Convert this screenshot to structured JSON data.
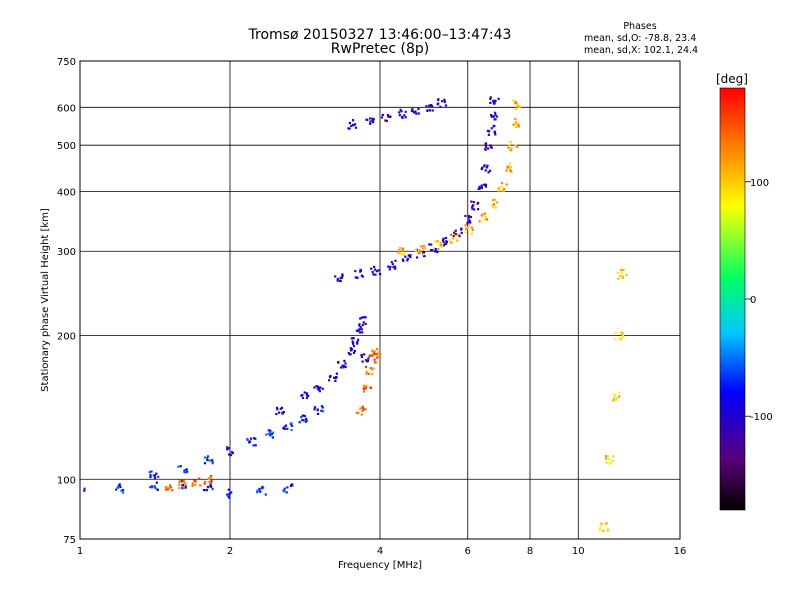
{
  "title_line1": "Tromsø 20150327 13:46:00–13:47:43",
  "title_line2": "RwPretec (8p)",
  "phases": {
    "heading": "Phases",
    "line_o": "mean, sd,O: -78.8, 23.4",
    "line_x": "mean, sd,X: 102.1, 24.4"
  },
  "colorbar": {
    "label": "[deg]",
    "ticks": [
      {
        "value": 100,
        "label": "100"
      },
      {
        "value": 0,
        "label": "0"
      },
      {
        "value": -100,
        "label": "-100"
      }
    ],
    "range": [
      -180,
      180
    ]
  },
  "chart_data": {
    "type": "scatter",
    "xlabel": "Frequency [MHz]",
    "ylabel": "Stationary phase Virtual Height [km]",
    "xscale": "log",
    "yscale": "log",
    "xlim": [
      1,
      16
    ],
    "ylim": [
      75,
      750
    ],
    "xticks": [
      {
        "v": 1,
        "label": "1"
      },
      {
        "v": 2,
        "label": "2"
      },
      {
        "v": 4,
        "label": "4"
      },
      {
        "v": 6,
        "label": "6"
      },
      {
        "v": 8,
        "label": "8"
      },
      {
        "v": 10,
        "label": "10"
      },
      {
        "v": 16,
        "label": "16"
      }
    ],
    "yticks": [
      {
        "v": 75,
        "label": "75"
      },
      {
        "v": 100,
        "label": "100"
      },
      {
        "v": 200,
        "label": "200"
      },
      {
        "v": 300,
        "label": "300"
      },
      {
        "v": 400,
        "label": "400"
      },
      {
        "v": 500,
        "label": "500"
      },
      {
        "v": 600,
        "label": "600"
      },
      {
        "v": 750,
        "label": "750"
      }
    ],
    "grid": true,
    "color_by": "phase [deg]",
    "traces": [
      {
        "name": "",
        "phase": -100,
        "x": [
          2.5,
          2.8,
          3.0,
          3.2,
          3.35,
          3.5,
          3.55,
          3.6,
          3.65,
          3.7
        ],
        "y": [
          140,
          150,
          155,
          165,
          175,
          185,
          195,
          205,
          215,
          180
        ]
      },
      {
        "name": "",
        "phase": -75,
        "x": [
          1.4,
          1.6,
          1.8,
          2.0,
          2.2,
          2.4,
          2.6,
          2.8,
          3.0
        ],
        "y": [
          103,
          105,
          110,
          115,
          120,
          125,
          130,
          135,
          140
        ]
      },
      {
        "name": "",
        "phase": -100,
        "x": [
          3.3,
          3.6,
          3.9,
          4.2,
          4.5,
          4.8,
          5.1,
          5.4,
          5.7,
          6.0,
          6.2,
          6.4,
          6.5,
          6.6,
          6.65,
          6.7,
          6.75
        ],
        "y": [
          265,
          270,
          275,
          282,
          290,
          298,
          305,
          315,
          330,
          350,
          375,
          410,
          450,
          500,
          540,
          580,
          620
        ]
      },
      {
        "name": "",
        "phase": -100,
        "x": [
          3.5,
          3.8,
          4.1,
          4.4,
          4.7,
          5.0,
          5.3
        ],
        "y": [
          555,
          565,
          575,
          585,
          595,
          605,
          615
        ]
      },
      {
        "name": "",
        "phase": 110,
        "x": [
          4.4,
          4.8,
          5.2,
          5.6,
          6.0,
          6.4,
          6.8,
          7.0,
          7.2,
          7.35,
          7.45,
          7.5
        ],
        "y": [
          300,
          303,
          310,
          320,
          335,
          355,
          380,
          410,
          450,
          500,
          560,
          610
        ]
      },
      {
        "name": "",
        "phase": 140,
        "x": [
          3.65,
          3.75,
          3.8,
          3.85,
          3.9
        ],
        "y": [
          140,
          155,
          170,
          180,
          185
        ]
      },
      {
        "name": "",
        "phase": 95,
        "x": [
          11.2,
          11.5,
          11.8,
          12.0,
          12.2
        ],
        "y": [
          80,
          110,
          150,
          200,
          270
        ]
      },
      {
        "name": "",
        "phase": -75,
        "x": [
          1.0,
          1.2,
          1.4,
          1.6,
          1.8,
          2.0,
          2.3,
          2.6
        ],
        "y": [
          95,
          96,
          97,
          98,
          97,
          94,
          95,
          96
        ]
      },
      {
        "name": "",
        "phase": 140,
        "x": [
          1.5,
          1.6,
          1.7,
          1.8
        ],
        "y": [
          97,
          98,
          99,
          100
        ]
      }
    ]
  }
}
